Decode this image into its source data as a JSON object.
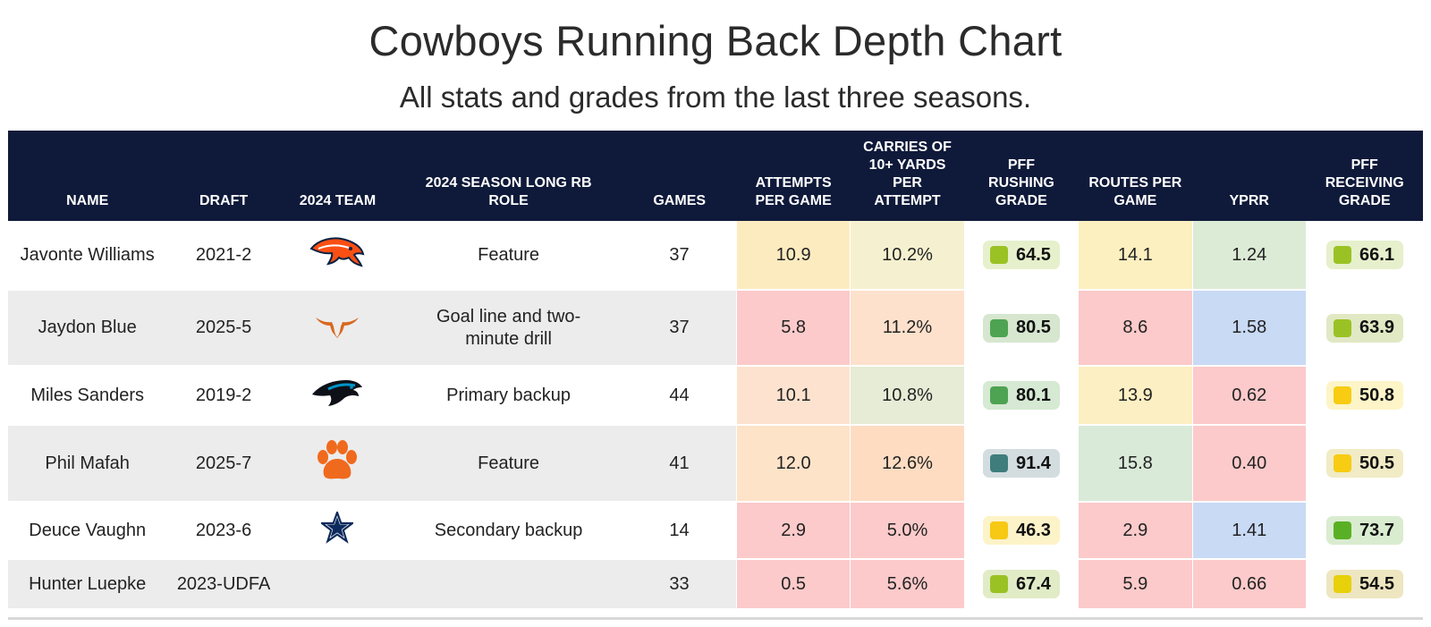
{
  "title": "Cowboys Running Back Depth Chart",
  "subtitle": "All stats and grades from the last three seasons.",
  "headers": {
    "name": "NAME",
    "draft": "DRAFT",
    "team": "2024 TEAM",
    "role": "2024 SEASON LONG RB ROLE",
    "games": "GAMES",
    "att": "ATTEMPTS PER GAME",
    "carries": "CARRIES OF 10+ YARDS PER ATTEMPT",
    "rush": "PFF RUSHING GRADE",
    "routes": "ROUTES PER GAME",
    "yprr": "YPRR",
    "recv": "PFF RECEIVING GRADE"
  },
  "rows": [
    {
      "name": "Javonte Williams",
      "draft": "2021-2",
      "team_icon": "broncos-logo",
      "role": "Feature",
      "games": "37",
      "att": "10.9",
      "att_bg": "#fdebc0",
      "carries": "10.2%",
      "carries_bg": "#f5f1d0",
      "rush": "64.5",
      "rush_bg": "#e6f0cc",
      "rush_sq": "#9bc224",
      "routes": "14.1",
      "routes_bg": "#fcefc0",
      "yprr": "1.24",
      "yprr_bg": "#dcebd6",
      "recv": "66.1",
      "recv_bg": "#e6f0cc",
      "recv_sq": "#9bc224"
    },
    {
      "name": "Jaydon Blue",
      "draft": "2025-5",
      "team_icon": "longhorns-logo",
      "role": "Goal line and two-minute drill",
      "games": "37",
      "att": "5.8",
      "att_bg": "#fccaca",
      "carries": "11.2%",
      "carries_bg": "#fde1cc",
      "rush": "80.5",
      "rush_bg": "#d6e6cf",
      "rush_sq": "#4ea352",
      "routes": "8.6",
      "routes_bg": "#fccaca",
      "yprr": "1.58",
      "yprr_bg": "#c9daf5",
      "recv": "63.9",
      "recv_bg": "#e1e8c4",
      "recv_sq": "#9bc224"
    },
    {
      "name": "Miles Sanders",
      "draft": "2019-2",
      "team_icon": "panthers-logo",
      "role": "Primary backup",
      "games": "44",
      "att": "10.1",
      "att_bg": "#fde3cf",
      "carries": "10.8%",
      "carries_bg": "#e6ecd6",
      "rush": "80.1",
      "rush_bg": "#d6e9d3",
      "rush_sq": "#4ea352",
      "routes": "13.9",
      "routes_bg": "#fcefc3",
      "yprr": "0.62",
      "yprr_bg": "#fccaca",
      "recv": "50.8",
      "recv_bg": "#fdf5c8",
      "recv_sq": "#f7cc12"
    },
    {
      "name": "Phil Mafah",
      "draft": "2025-7",
      "team_icon": "clemson-logo",
      "role": "Feature",
      "games": "41",
      "att": "12.0",
      "att_bg": "#fde3c8",
      "carries": "12.6%",
      "carries_bg": "#fddcc2",
      "rush": "91.4",
      "rush_bg": "#d3dde0",
      "rush_sq": "#3f7d7d",
      "routes": "15.8",
      "routes_bg": "#d9ead9",
      "yprr": "0.40",
      "yprr_bg": "#fccaca",
      "recv": "50.5",
      "recv_bg": "#f1ebc6",
      "recv_sq": "#f7cc12"
    },
    {
      "name": "Deuce Vaughn",
      "draft": "2023-6",
      "team_icon": "cowboys-star-logo",
      "role": "Secondary backup",
      "games": "14",
      "att": "2.9",
      "att_bg": "#fccaca",
      "carries": "5.0%",
      "carries_bg": "#fccaca",
      "rush": "46.3",
      "rush_bg": "#fdf3c8",
      "rush_sq": "#f7c814",
      "routes": "2.9",
      "routes_bg": "#fccaca",
      "yprr": "1.41",
      "yprr_bg": "#c9daf5",
      "recv": "73.7",
      "recv_bg": "#d9ecd0",
      "recv_sq": "#5ab024"
    },
    {
      "name": "Hunter Luepke",
      "draft": "2023-UDFA",
      "team_icon": "",
      "role": "",
      "games": "33",
      "att": "0.5",
      "att_bg": "#fccaca",
      "carries": "5.6%",
      "carries_bg": "#fccaca",
      "rush": "67.4",
      "rush_bg": "#e1ebc6",
      "rush_sq": "#9bc224",
      "routes": "5.9",
      "routes_bg": "#fccaca",
      "yprr": "0.66",
      "yprr_bg": "#fccaca",
      "recv": "54.5",
      "recv_bg": "#ede6c0",
      "recv_sq": "#e8d00a"
    }
  ]
}
